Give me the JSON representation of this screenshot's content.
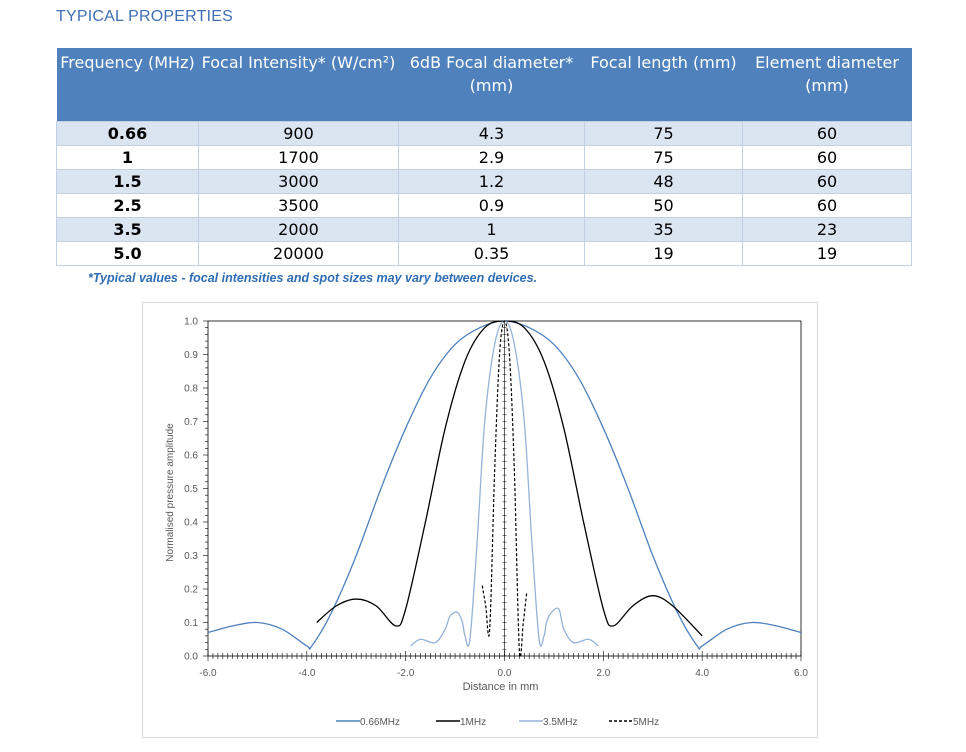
{
  "heading": "TYPICAL PROPERTIES",
  "table": {
    "headers": [
      "Frequency (MHz)",
      "Focal Intensity* (W/cm²)",
      "6dB Focal diameter* (mm)",
      "Focal length (mm)",
      "Element diameter (mm)"
    ],
    "rows": [
      [
        "0.66",
        "900",
        "4.3",
        "75",
        "60"
      ],
      [
        "1",
        "1700",
        "2.9",
        "75",
        "60"
      ],
      [
        "1.5",
        "3000",
        "1.2",
        "48",
        "60"
      ],
      [
        "2.5",
        "3500",
        "0.9",
        "50",
        "60"
      ],
      [
        "3.5",
        "2000",
        "1",
        "35",
        "23"
      ],
      [
        "5.0",
        "20000",
        "0.35",
        "19",
        "19"
      ]
    ]
  },
  "note": "*Typical values - focal intensities and spot sizes may vary between devices.",
  "chart_data": {
    "type": "line",
    "xlabel": "Distance in mm",
    "ylabel": "Normalised pressure amplitude",
    "xlim": [
      -6.0,
      6.0
    ],
    "ylim": [
      0.0,
      1.0
    ],
    "x_ticks": [
      "-6.0",
      "-4.0",
      "-2.0",
      "0.0",
      "2.0",
      "4.0",
      "6.0"
    ],
    "y_ticks": [
      "0.0",
      "0.1",
      "0.2",
      "0.3",
      "0.4",
      "0.5",
      "0.6",
      "0.7",
      "0.8",
      "0.9",
      "1.0"
    ],
    "grid": false,
    "legend": "bottom",
    "series": [
      {
        "name": "0.66MHz",
        "color": "#4f81bd",
        "style": "solid",
        "x": [
          -6.0,
          -5.5,
          -5.0,
          -4.5,
          -4.0,
          -3.9,
          -3.5,
          -3.0,
          -2.5,
          -2.0,
          -1.5,
          -1.0,
          -0.5,
          0.0,
          0.5,
          1.0,
          1.5,
          2.0,
          2.5,
          3.0,
          3.5,
          3.9,
          4.0,
          4.5,
          5.0,
          5.5,
          6.0
        ],
        "y": [
          0.07,
          0.09,
          0.1,
          0.08,
          0.03,
          0.03,
          0.13,
          0.3,
          0.5,
          0.68,
          0.83,
          0.93,
          0.98,
          1.0,
          0.98,
          0.93,
          0.83,
          0.68,
          0.5,
          0.3,
          0.13,
          0.03,
          0.03,
          0.08,
          0.1,
          0.09,
          0.07
        ]
      },
      {
        "name": "1MHz",
        "color": "#000000",
        "style": "solid",
        "x": [
          -3.8,
          -3.4,
          -3.0,
          -2.6,
          -2.2,
          -2.0,
          -1.6,
          -1.2,
          -0.8,
          -0.4,
          0.0,
          0.4,
          0.8,
          1.2,
          1.6,
          2.0,
          2.2,
          2.6,
          3.0,
          3.4,
          4.0
        ],
        "y": [
          0.1,
          0.15,
          0.17,
          0.15,
          0.09,
          0.14,
          0.4,
          0.68,
          0.88,
          0.98,
          1.0,
          0.98,
          0.88,
          0.68,
          0.4,
          0.14,
          0.09,
          0.15,
          0.18,
          0.15,
          0.06
        ],
        "sample": true
      },
      {
        "name": "3.5MHz",
        "color": "#95b3d7",
        "style": "solid",
        "x": [
          -1.9,
          -1.7,
          -1.4,
          -1.2,
          -1.1,
          -0.95,
          -0.85,
          -0.8,
          -0.7,
          -0.55,
          -0.4,
          -0.2,
          0.0,
          0.2,
          0.4,
          0.55,
          0.7,
          0.8,
          0.85,
          0.95,
          1.1,
          1.2,
          1.4,
          1.7,
          1.9
        ],
        "y": [
          0.03,
          0.05,
          0.04,
          0.08,
          0.12,
          0.13,
          0.1,
          0.06,
          0.05,
          0.35,
          0.7,
          0.93,
          1.0,
          0.93,
          0.7,
          0.35,
          0.05,
          0.06,
          0.1,
          0.13,
          0.14,
          0.08,
          0.04,
          0.05,
          0.03
        ]
      },
      {
        "name": "5MHz",
        "color": "#000000",
        "style": "dashed",
        "x": [
          -0.45,
          -0.38,
          -0.3,
          -0.2,
          -0.1,
          0.0,
          0.1,
          0.2,
          0.3,
          0.38,
          0.45
        ],
        "y": [
          0.21,
          0.15,
          0.08,
          0.55,
          0.9,
          1.0,
          0.9,
          0.55,
          0.02,
          0.1,
          0.19
        ]
      }
    ]
  }
}
